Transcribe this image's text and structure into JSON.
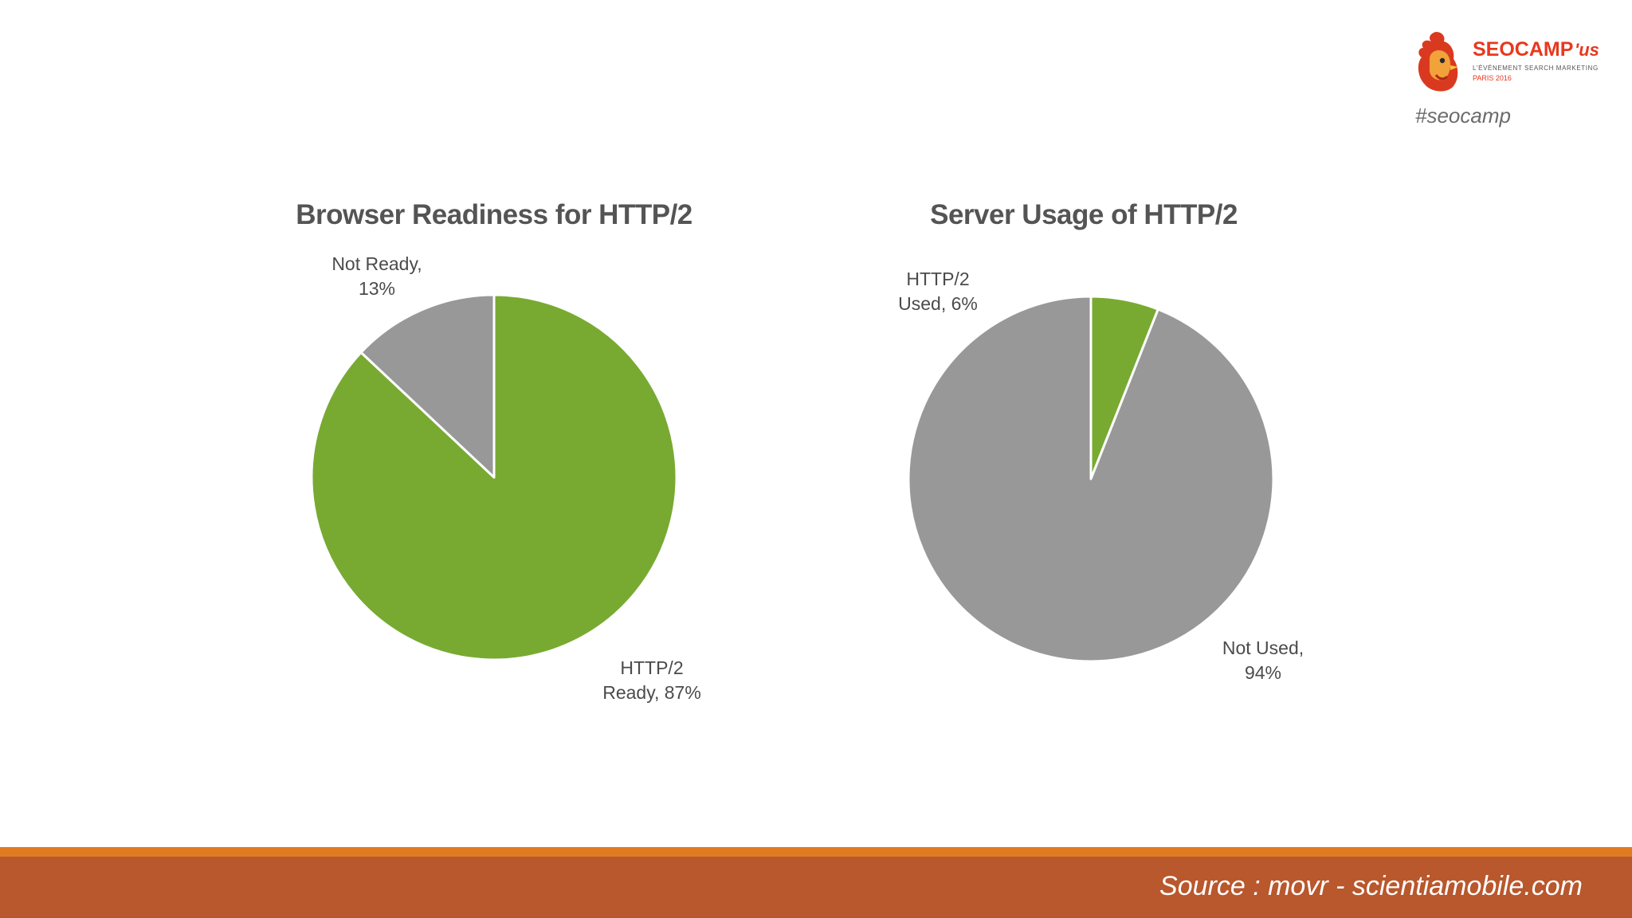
{
  "branding": {
    "logo_text_main": "SEOCAMP",
    "logo_text_suffix": "'us",
    "logo_tagline": "L'ÉVÉNEMENT SEARCH MARKETING",
    "logo_edition": "PARIS 2016",
    "hashtag": "#seocamp",
    "logo_icon": "rooster-icon",
    "accent_color": "#e8381e"
  },
  "footer": {
    "source": "Source : movr - scientiamobile.com",
    "bar_color": "#b9572d",
    "bar_top_color": "#e17b22"
  },
  "colors": {
    "green": "#78aa32",
    "gray": "#999899"
  },
  "chart_data": [
    {
      "type": "pie",
      "title": "Browser Readiness for HTTP/2",
      "slices": [
        {
          "label_line1": "HTTP/2",
          "label_line2": "Ready, 87%",
          "value": 87,
          "color": "#78aa32"
        },
        {
          "label_line1": "Not Ready,",
          "label_line2": "13%",
          "value": 13,
          "color": "#999899"
        }
      ]
    },
    {
      "type": "pie",
      "title": "Server Usage of HTTP/2",
      "slices": [
        {
          "label_line1": "HTTP/2",
          "label_line2": "Used, 6%",
          "value": 6,
          "color": "#78aa32"
        },
        {
          "label_line1": "Not Used,",
          "label_line2": "94%",
          "value": 94,
          "color": "#999899"
        }
      ]
    }
  ]
}
